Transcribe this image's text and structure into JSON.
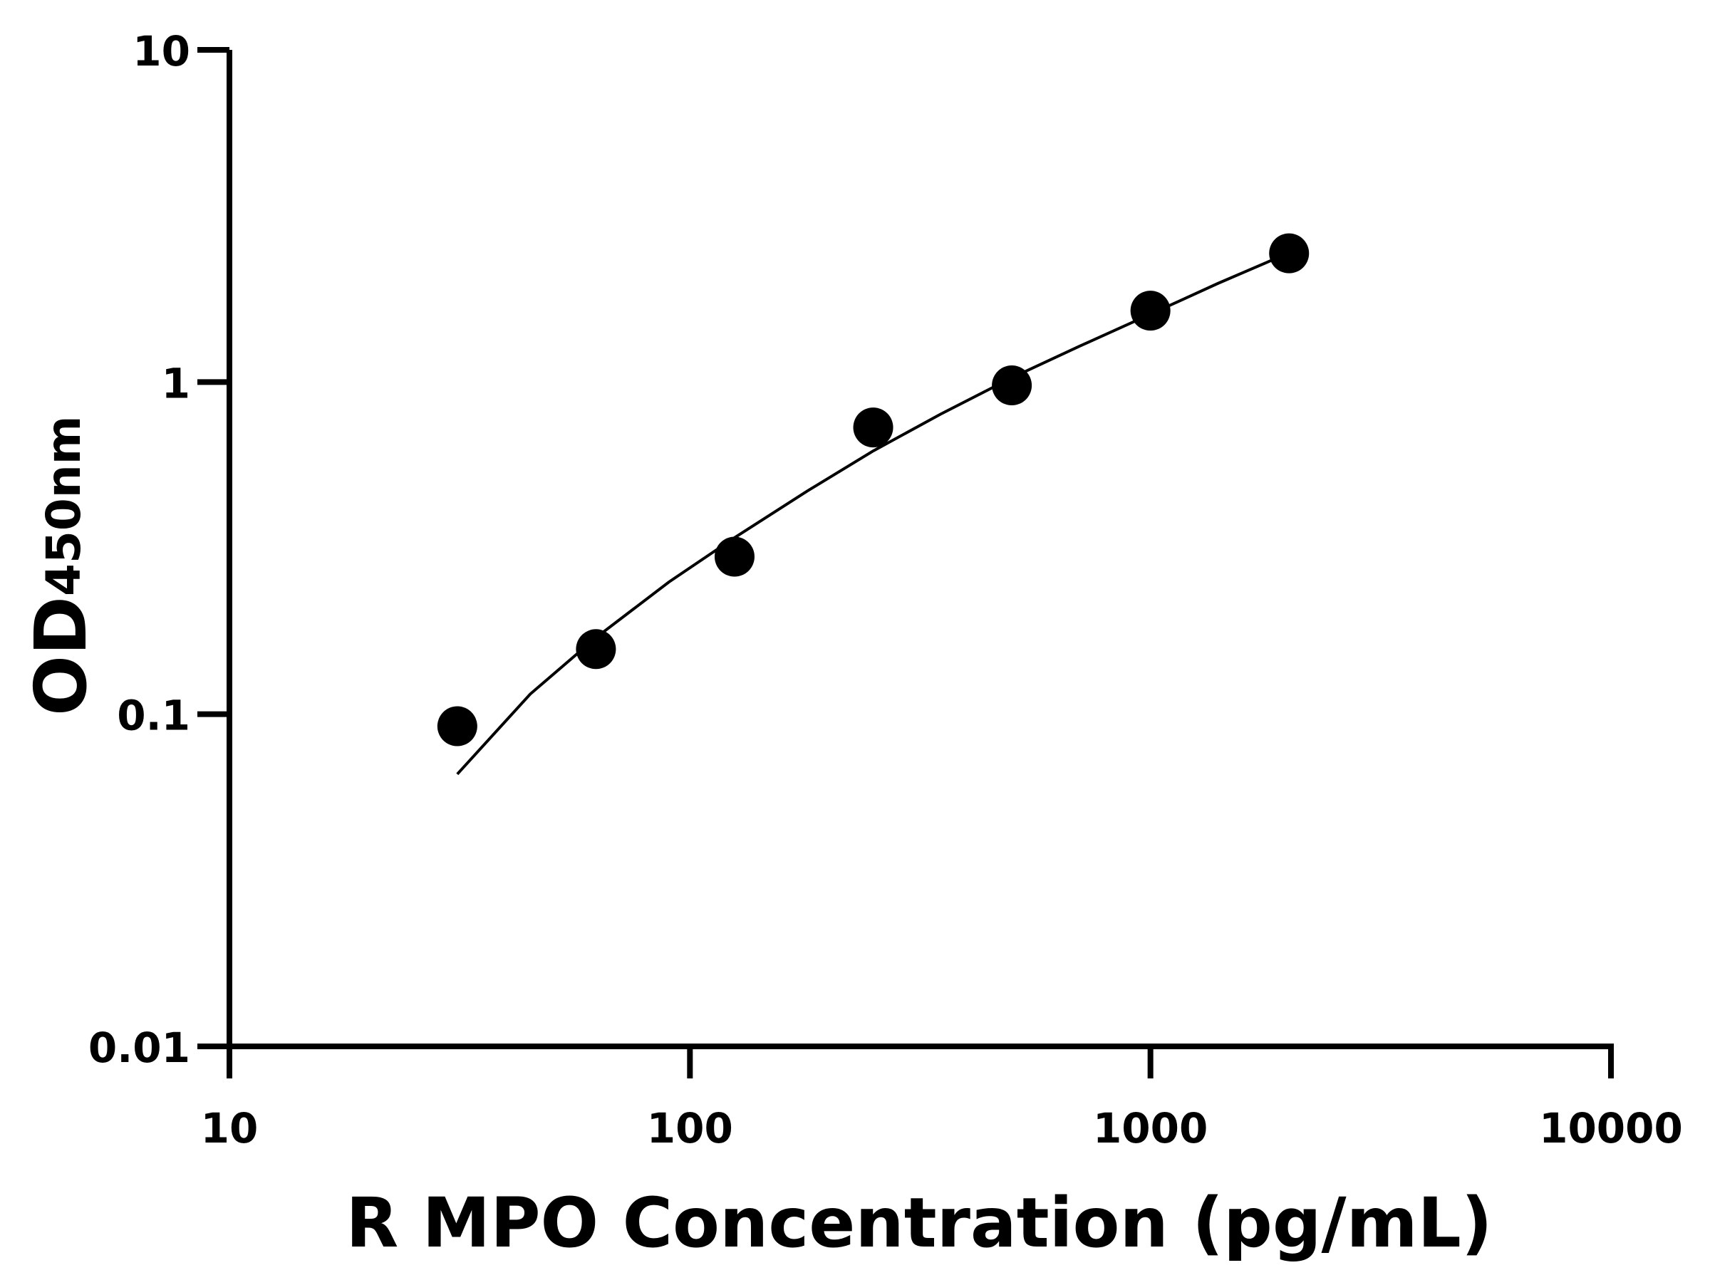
{
  "chart_data": {
    "type": "scatter",
    "xlabel": "R MPO Concentration (pg/mL)",
    "ylabel_main": "OD",
    "ylabel_sub": "450nm",
    "xscale": "log",
    "yscale": "log",
    "xlim": [
      10,
      10000
    ],
    "ylim": [
      0.01,
      10
    ],
    "xticks": [
      "10",
      "100",
      "1000",
      "10000"
    ],
    "yticks": [
      "0.01",
      "0.1",
      "1",
      "10"
    ],
    "grid": false,
    "points": {
      "x": [
        31.25,
        62.5,
        125,
        250,
        500,
        1000,
        2000
      ],
      "y": [
        0.092,
        0.157,
        0.298,
        0.73,
        0.977,
        1.64,
        2.44
      ]
    },
    "fit_curve": {
      "x": [
        31.25,
        45,
        62.5,
        90,
        125,
        180,
        250,
        350,
        500,
        700,
        1000,
        1400,
        2000
      ],
      "y": [
        0.066,
        0.115,
        0.17,
        0.25,
        0.34,
        0.47,
        0.62,
        0.8,
        1.03,
        1.28,
        1.6,
        1.98,
        2.45
      ]
    },
    "colors": {
      "points": "#000000",
      "line": "#000000",
      "axes": "#000000"
    }
  }
}
